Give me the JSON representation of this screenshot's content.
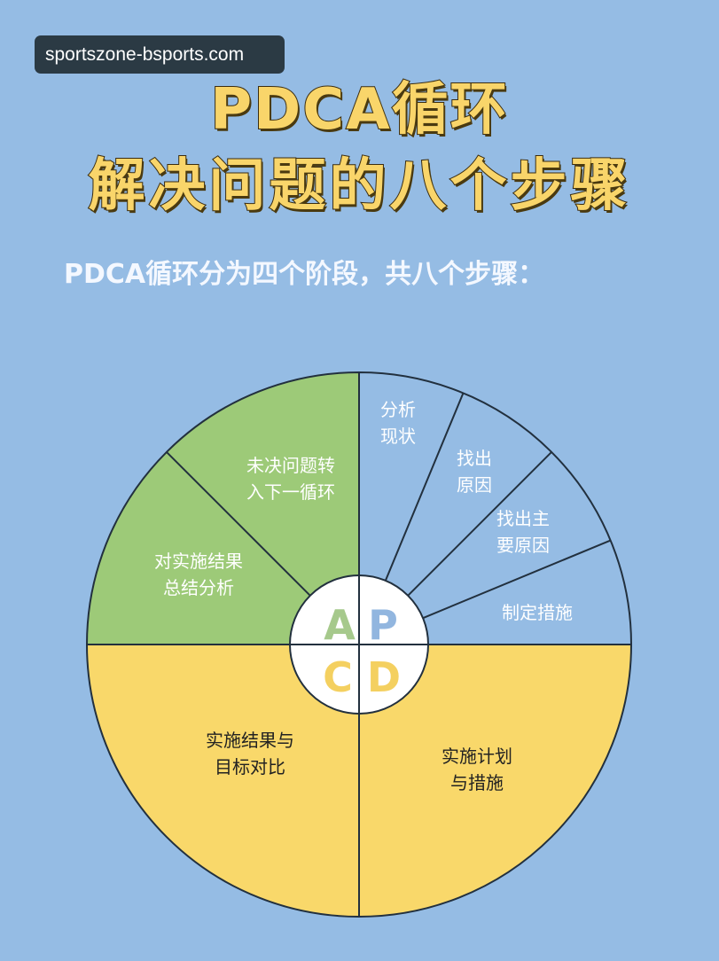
{
  "watermark": "sportszone-bsports.com",
  "title_line1": "PDCA循环",
  "title_line2": "解决问题的八个步骤",
  "subtitle": "PDCA循环分为四个阶段，共八个步骤：",
  "colors": {
    "background": "#95bce4",
    "plan": "#95bce4",
    "act": "#9dca78",
    "check": "#f9d86a",
    "do": "#f9d86a",
    "outline": "#22303e"
  },
  "phases": {
    "A": "A",
    "P": "P",
    "C": "C",
    "D": "D"
  },
  "steps": {
    "s1": [
      "分析",
      "现状"
    ],
    "s2": [
      "找出",
      "原因"
    ],
    "s3": [
      "找出主",
      "要原因"
    ],
    "s4": [
      "制定措施"
    ],
    "s5": [
      "实施计划",
      "与措施"
    ],
    "s6": [
      "实施结果与",
      "目标对比"
    ],
    "s7": [
      "对实施结果",
      "总结分析"
    ],
    "s8": [
      "未决问题转",
      "入下一循环"
    ]
  }
}
